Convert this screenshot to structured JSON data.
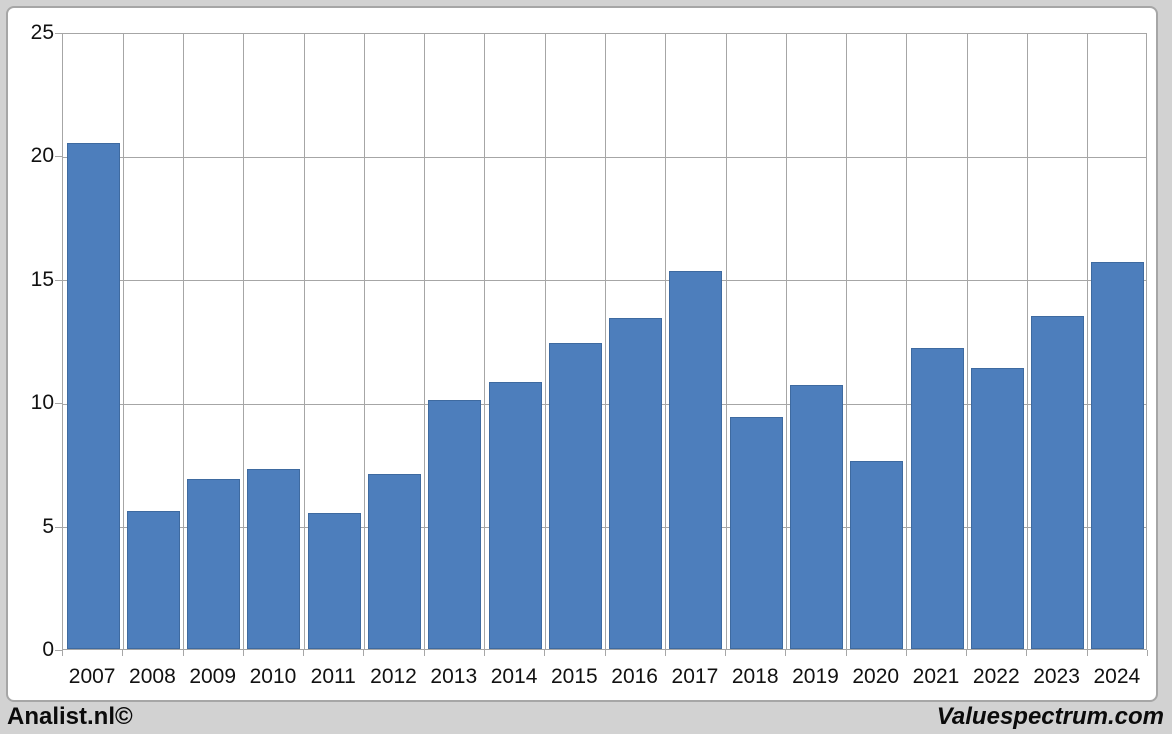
{
  "chart_data": {
    "type": "bar",
    "categories": [
      "2007",
      "2008",
      "2009",
      "2010",
      "2011",
      "2012",
      "2013",
      "2014",
      "2015",
      "2016",
      "2017",
      "2018",
      "2019",
      "2020",
      "2021",
      "2022",
      "2023",
      "2024"
    ],
    "values": [
      20.5,
      5.6,
      6.9,
      7.3,
      5.5,
      7.1,
      10.1,
      10.8,
      12.4,
      13.4,
      15.3,
      9.4,
      10.7,
      7.6,
      12.2,
      11.4,
      13.5,
      15.7
    ],
    "title": "",
    "xlabel": "",
    "ylabel": "",
    "ylim": [
      0,
      25
    ],
    "yticks": [
      0,
      5,
      10,
      15,
      20,
      25
    ],
    "grid": true,
    "legend": "none",
    "bar_color": "#4d7ebc",
    "bar_border_color": "#3e6aa0",
    "gridline_color": "#a6a6a6",
    "plot_background": "#ffffff",
    "page_background": "#d2d2d2"
  },
  "footer": {
    "left": "Analist.nl©",
    "right": "Valuespectrum.com"
  }
}
